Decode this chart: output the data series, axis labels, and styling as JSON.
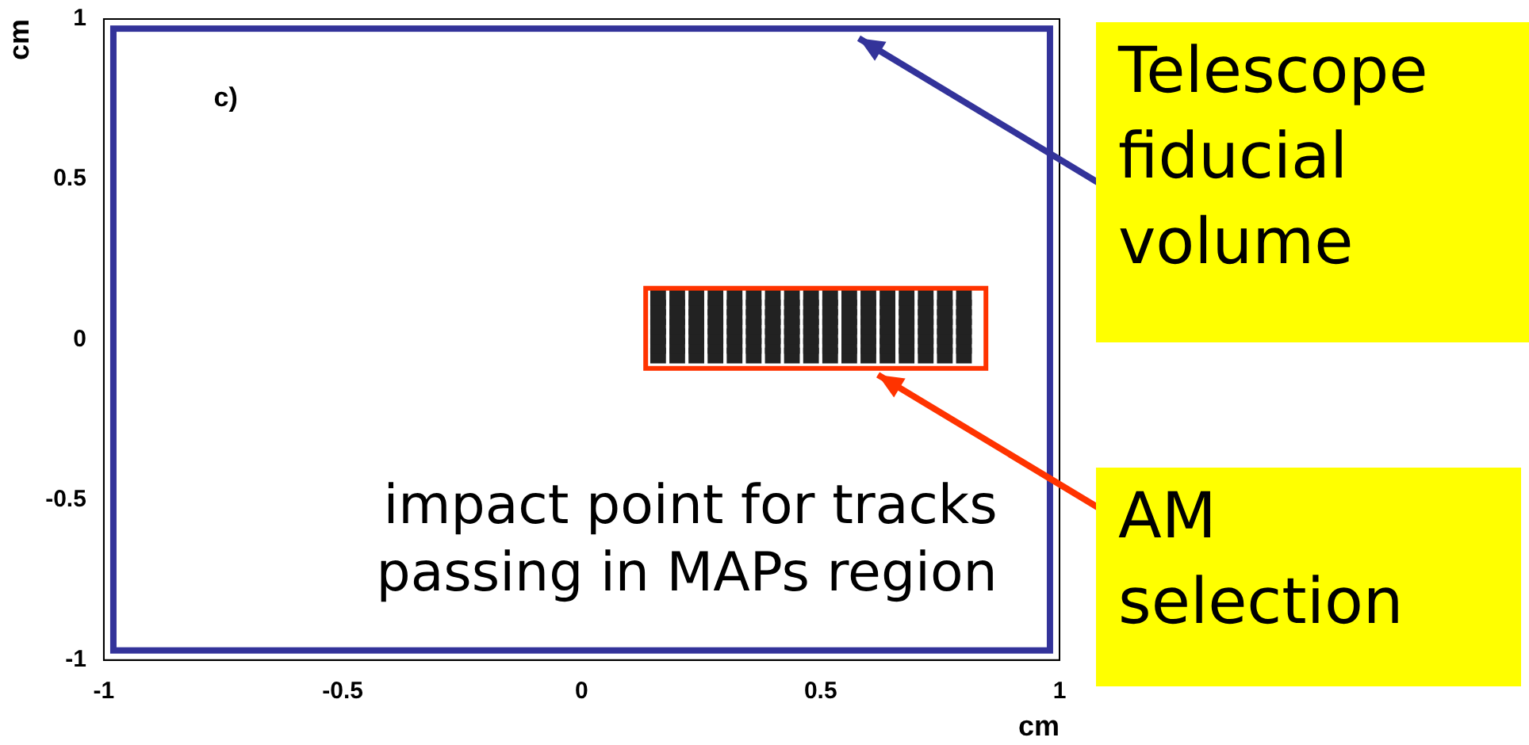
{
  "chart_data": {
    "type": "scatter",
    "xlabel": "cm",
    "ylabel": "cm",
    "xlim": [
      -1,
      1
    ],
    "xticks": [
      -1,
      -0.5,
      0,
      0.5,
      1
    ],
    "ylim": [
      -1,
      1
    ],
    "yticks": [
      -1,
      -0.5,
      0,
      0.5,
      1
    ],
    "grid": false,
    "legend": false,
    "marker": "square",
    "annotations": [
      "c)",
      "impact point for tracks passing in MAPs region",
      "Telescope fiducial volume",
      "AM selection"
    ],
    "series": [
      {
        "color": "#222222",
        "x": [
          0.16,
          0.2,
          0.24,
          0.28,
          0.32,
          0.36,
          0.4,
          0.44,
          0.48,
          0.52,
          0.56,
          0.6,
          0.64,
          0.68,
          0.72,
          0.76,
          0.8,
          0.16,
          0.2,
          0.24,
          0.28,
          0.32,
          0.36,
          0.4,
          0.44,
          0.48,
          0.52,
          0.56,
          0.6,
          0.64,
          0.68,
          0.72,
          0.76,
          0.8,
          0.16,
          0.2,
          0.24,
          0.28,
          0.32,
          0.36,
          0.4,
          0.44,
          0.48,
          0.52,
          0.56,
          0.6,
          0.64,
          0.68,
          0.72,
          0.76,
          0.8,
          0.16,
          0.2,
          0.24,
          0.28,
          0.32,
          0.36,
          0.4,
          0.44,
          0.48,
          0.52,
          0.56,
          0.6,
          0.64,
          0.68,
          0.72,
          0.76,
          0.8,
          0.16,
          0.2,
          0.24,
          0.28,
          0.32,
          0.36,
          0.4,
          0.44,
          0.48,
          0.52,
          0.56,
          0.6,
          0.64,
          0.68,
          0.72,
          0.76,
          0.8,
          0.16,
          0.2,
          0.24,
          0.28,
          0.32,
          0.36,
          0.4,
          0.44,
          0.48,
          0.52,
          0.56,
          0.6,
          0.64,
          0.68,
          0.72,
          0.76,
          0.8,
          0.16,
          0.2,
          0.24,
          0.28,
          0.32,
          0.36,
          0.4,
          0.44,
          0.48,
          0.52,
          0.56,
          0.6,
          0.64,
          0.68,
          0.72,
          0.76,
          0.8
        ],
        "values": [
          -0.05,
          -0.05,
          -0.05,
          -0.05,
          -0.05,
          -0.05,
          -0.05,
          -0.05,
          -0.05,
          -0.05,
          -0.05,
          -0.05,
          -0.05,
          -0.05,
          -0.05,
          -0.05,
          -0.05,
          -0.02,
          -0.02,
          -0.02,
          -0.02,
          -0.02,
          -0.02,
          -0.02,
          -0.02,
          -0.02,
          -0.02,
          -0.02,
          -0.02,
          -0.02,
          -0.02,
          -0.02,
          -0.02,
          -0.02,
          0.01,
          0.01,
          0.01,
          0.01,
          0.01,
          0.01,
          0.01,
          0.01,
          0.01,
          0.01,
          0.01,
          0.01,
          0.01,
          0.01,
          0.01,
          0.01,
          0.01,
          0.04,
          0.04,
          0.04,
          0.04,
          0.04,
          0.04,
          0.04,
          0.04,
          0.04,
          0.04,
          0.04,
          0.04,
          0.04,
          0.04,
          0.04,
          0.04,
          0.04,
          0.07,
          0.07,
          0.07,
          0.07,
          0.07,
          0.07,
          0.07,
          0.07,
          0.07,
          0.07,
          0.07,
          0.07,
          0.07,
          0.07,
          0.07,
          0.07,
          0.07,
          0.1,
          0.1,
          0.1,
          0.1,
          0.1,
          0.1,
          0.1,
          0.1,
          0.1,
          0.1,
          0.1,
          0.1,
          0.1,
          0.1,
          0.1,
          0.1,
          0.1,
          0.13,
          0.13,
          0.13,
          0.13,
          0.13,
          0.13,
          0.13,
          0.13,
          0.13,
          0.13,
          0.13,
          0.13,
          0.13,
          0.13,
          0.13,
          0.13,
          0.13
        ]
      }
    ]
  }
}
